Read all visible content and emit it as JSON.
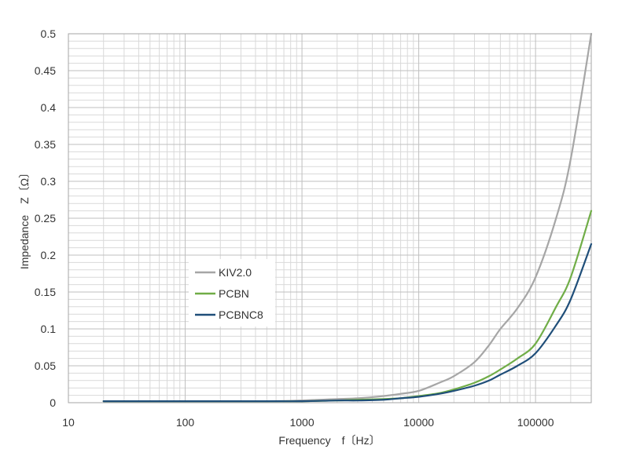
{
  "chart_data": {
    "type": "line",
    "title": "",
    "xlabel": "Frequency　f〔Hz〕",
    "ylabel": "Impedance　Z〔Ω〕",
    "xscale": "log",
    "xlim": [
      10,
      300000
    ],
    "ylim": [
      0,
      0.5
    ],
    "x_ticks": [
      "10",
      "100",
      "1000",
      "10000",
      "100000"
    ],
    "y_ticks": [
      "0",
      "0.05",
      "0.1",
      "0.15",
      "0.2",
      "0.25",
      "0.3",
      "0.35",
      "0.4",
      "0.45",
      "0.5"
    ],
    "grid": true,
    "legend_position": "center-left",
    "x": [
      20,
      50,
      100,
      200,
      500,
      1000,
      2000,
      3000,
      5000,
      7000,
      10000,
      15000,
      20000,
      30000,
      40000,
      50000,
      70000,
      100000,
      150000,
      200000,
      300000
    ],
    "series": [
      {
        "name": "KIV2.0",
        "color": "#a6a6a6",
        "values": [
          0.002,
          0.002,
          0.002,
          0.002,
          0.002,
          0.003,
          0.005,
          0.006,
          0.009,
          0.012,
          0.016,
          0.027,
          0.036,
          0.055,
          0.078,
          0.1,
          0.128,
          0.17,
          0.25,
          0.33,
          0.5
        ]
      },
      {
        "name": "PCBN",
        "color": "#70ad47",
        "values": [
          0.002,
          0.002,
          0.002,
          0.002,
          0.002,
          0.002,
          0.003,
          0.004,
          0.005,
          0.006,
          0.009,
          0.013,
          0.018,
          0.027,
          0.036,
          0.045,
          0.06,
          0.08,
          0.13,
          0.17,
          0.26
        ]
      },
      {
        "name": "PCBNC8",
        "color": "#1f4e79",
        "values": [
          0.002,
          0.002,
          0.002,
          0.002,
          0.002,
          0.002,
          0.003,
          0.003,
          0.004,
          0.006,
          0.008,
          0.012,
          0.016,
          0.023,
          0.03,
          0.038,
          0.05,
          0.067,
          0.105,
          0.14,
          0.215
        ]
      }
    ]
  }
}
